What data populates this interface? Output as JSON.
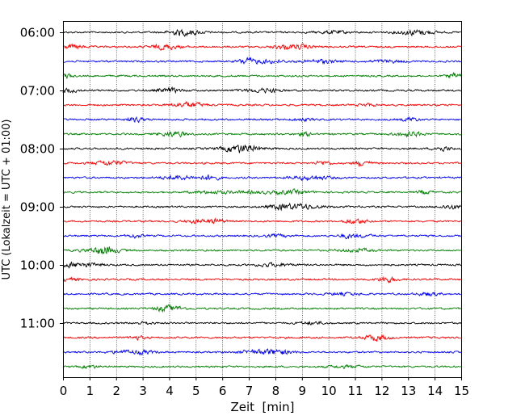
{
  "chart_data": {
    "type": "line",
    "title": "",
    "xlabel": "Zeit  [min]",
    "ylabel": "UTC (Lokalzeit = UTC + 01:00)",
    "xlim": [
      0,
      15
    ],
    "x_ticks": [
      "0",
      "1",
      "2",
      "3",
      "4",
      "5",
      "6",
      "7",
      "8",
      "9",
      "10",
      "11",
      "12",
      "13",
      "14",
      "15"
    ],
    "y_ticks": [
      "06:00",
      "07:00",
      "08:00",
      "09:00",
      "10:00",
      "11:00"
    ],
    "grid": "vertical dotted at each minute",
    "legend": "none",
    "traces_per_hour": 4,
    "trace_count": 24,
    "trace_colors": [
      "#000000",
      "#ff0000",
      "#0000ff",
      "#008000"
    ],
    "series": [
      {
        "start": "06:00"
      },
      {
        "start": "06:15"
      },
      {
        "start": "06:30"
      },
      {
        "start": "06:45"
      },
      {
        "start": "07:00"
      },
      {
        "start": "07:15"
      },
      {
        "start": "07:30"
      },
      {
        "start": "07:45"
      },
      {
        "start": "08:00"
      },
      {
        "start": "08:15"
      },
      {
        "start": "08:30"
      },
      {
        "start": "08:45"
      },
      {
        "start": "09:00"
      },
      {
        "start": "09:15"
      },
      {
        "start": "09:30"
      },
      {
        "start": "09:45"
      },
      {
        "start": "10:00"
      },
      {
        "start": "10:15"
      },
      {
        "start": "10:30"
      },
      {
        "start": "10:45"
      },
      {
        "start": "11:00"
      },
      {
        "start": "11:15"
      },
      {
        "start": "11:30"
      },
      {
        "start": "11:45"
      }
    ]
  }
}
